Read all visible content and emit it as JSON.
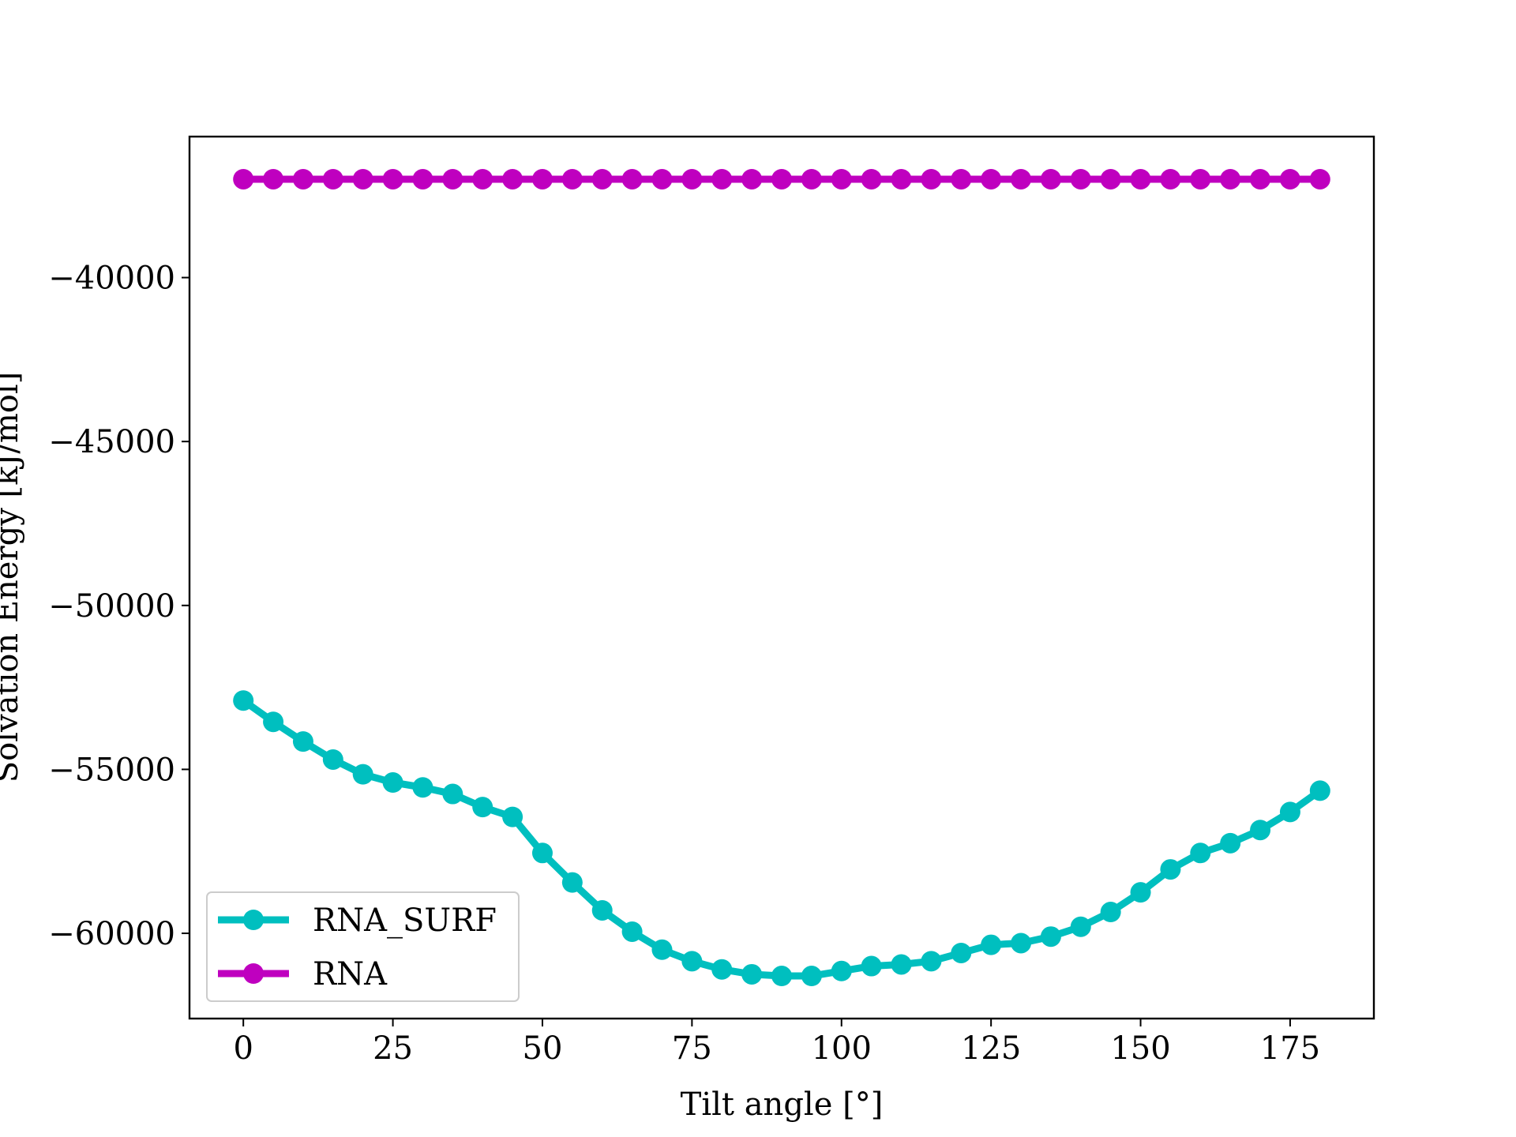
{
  "chart_data": {
    "type": "line",
    "title": "",
    "xlabel": "Tilt angle [°]",
    "ylabel": "Solvation Energy [kJ/mol]",
    "xlim": [
      -9,
      189
    ],
    "ylim": [
      -62600,
      -35700
    ],
    "xticks": [
      0,
      25,
      50,
      75,
      100,
      125,
      150,
      175
    ],
    "xtick_labels": [
      "0",
      "25",
      "50",
      "75",
      "100",
      "125",
      "150",
      "175"
    ],
    "yticks": [
      -40000,
      -45000,
      -50000,
      -55000,
      -60000
    ],
    "ytick_labels": [
      "−40000",
      "−45000",
      "−50000",
      "−55000",
      "−60000"
    ],
    "grid": false,
    "legend_position": "lower left",
    "x": [
      0,
      5,
      10,
      15,
      20,
      25,
      30,
      35,
      40,
      45,
      50,
      55,
      60,
      65,
      70,
      75,
      80,
      85,
      90,
      95,
      100,
      105,
      110,
      115,
      120,
      125,
      130,
      135,
      140,
      145,
      150,
      155,
      160,
      165,
      170,
      175,
      180
    ],
    "series": [
      {
        "name": "RNA_SURF",
        "color": "#00bfbf",
        "values": [
          -52900,
          -53550,
          -54150,
          -54700,
          -55150,
          -55400,
          -55550,
          -55750,
          -56150,
          -56450,
          -57550,
          -58450,
          -59300,
          -59950,
          -60500,
          -60850,
          -61100,
          -61250,
          -61300,
          -61300,
          -61150,
          -61000,
          -60950,
          -60850,
          -60600,
          -60350,
          -60300,
          -60100,
          -59800,
          -59350,
          -58750,
          -58050,
          -57550,
          -57250,
          -56850,
          -56300,
          -55650
        ]
      },
      {
        "name": "RNA",
        "color": "#bf00bf",
        "values": [
          -37000,
          -37000,
          -37000,
          -37000,
          -37000,
          -37000,
          -37000,
          -37000,
          -37000,
          -37000,
          -37000,
          -37000,
          -37000,
          -37000,
          -37000,
          -37000,
          -37000,
          -37000,
          -37000,
          -37000,
          -37000,
          -37000,
          -37000,
          -37000,
          -37000,
          -37000,
          -37000,
          -37000,
          -37000,
          -37000,
          -37000,
          -37000,
          -37000,
          -37000,
          -37000,
          -37000,
          -37000
        ]
      }
    ]
  }
}
